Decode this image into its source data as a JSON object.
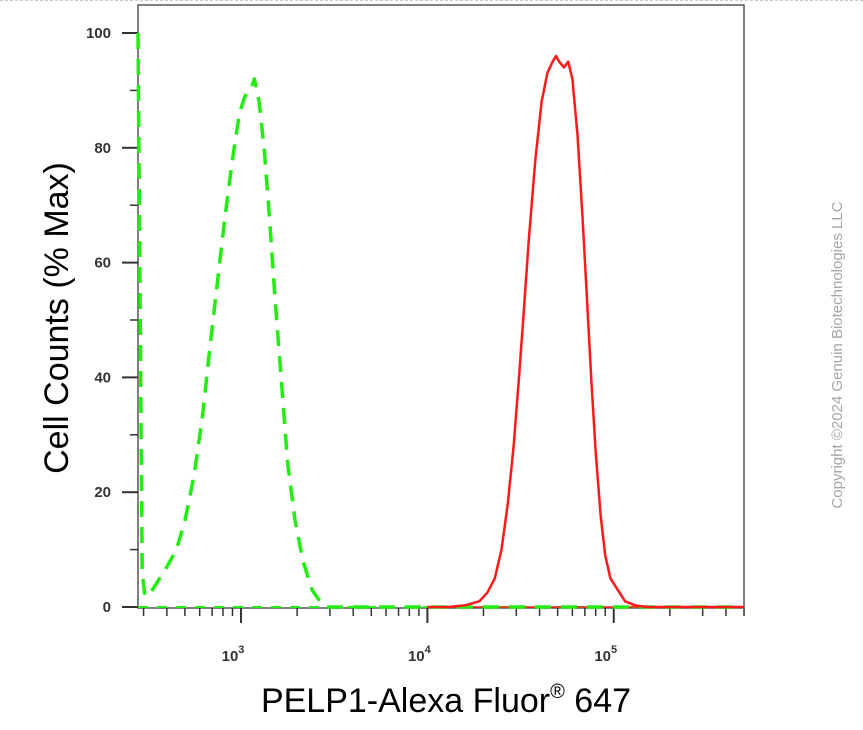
{
  "chart_data": {
    "type": "line",
    "xlabel_main": "PELP1-Alexa Fluor",
    "xlabel_sup": "®",
    "xlabel_tail": " 647",
    "ylabel": "Cell Counts (% Max)",
    "x_scale": "log",
    "xlim": [
      280,
      500000
    ],
    "ylim": [
      0,
      105
    ],
    "y_ticks": [
      "0",
      "20",
      "40",
      "60",
      "80",
      "100"
    ],
    "x_ticks": [
      {
        "value": 1000,
        "base": "10",
        "exp": "3"
      },
      {
        "value": 10000,
        "base": "10",
        "exp": "4"
      },
      {
        "value": 100000,
        "base": "10",
        "exp": "5"
      }
    ],
    "grid": false,
    "series": [
      {
        "style": "dashed",
        "color": "#22ee11",
        "x": [
          280,
          295,
          305,
          320,
          350,
          400,
          450,
          500,
          560,
          620,
          680,
          750,
          820,
          900,
          980,
          1050,
          1120,
          1180,
          1250,
          1330,
          1420,
          1520,
          1640,
          1780,
          1950,
          2150,
          2400,
          2650,
          2850,
          3000,
          3500,
          5000,
          10000,
          20000,
          50000,
          100000,
          200000,
          500000
        ],
        "y": [
          100,
          6,
          2,
          2,
          4,
          7,
          10,
          15,
          23,
          33,
          45,
          57,
          68,
          78,
          86,
          89,
          90,
          92,
          88,
          80,
          68,
          54,
          40,
          25,
          15,
          8,
          3,
          1,
          0,
          0,
          0,
          0,
          0,
          0,
          0,
          0,
          0,
          0
        ]
      },
      {
        "style": "solid",
        "color": "#ff1a1a",
        "x": [
          10000,
          13000,
          16000,
          19000,
          21000,
          23000,
          25000,
          27000,
          29000,
          31000,
          33000,
          35000,
          38000,
          41000,
          44000,
          47000,
          49000,
          51000,
          54000,
          57000,
          60000,
          64000,
          68000,
          72000,
          76000,
          80000,
          85000,
          90000,
          96000,
          105000,
          115000,
          130000,
          150000,
          200000,
          500000
        ],
        "y": [
          0,
          0,
          0.3,
          1,
          2.5,
          5,
          10,
          18,
          28,
          40,
          52,
          64,
          78,
          88,
          93,
          95,
          96,
          95,
          94,
          95,
          92,
          82,
          68,
          53,
          39,
          27,
          16,
          9,
          5,
          3,
          1,
          0.3,
          0,
          0,
          0
        ]
      }
    ]
  },
  "copyright": "Copyright ©2024 Genuin Biotechnologies LLC"
}
